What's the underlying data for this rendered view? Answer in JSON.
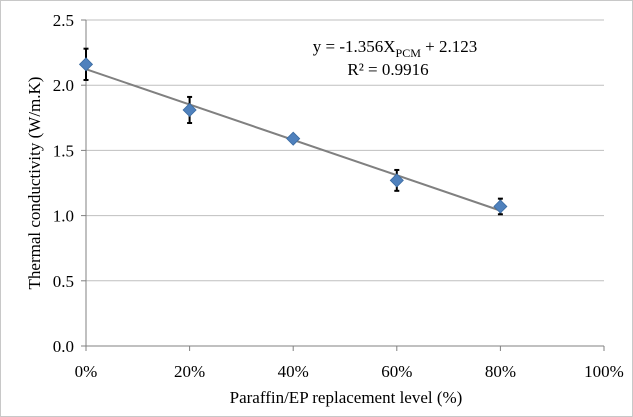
{
  "chart_data": {
    "type": "scatter",
    "title": "",
    "xlabel": "Paraffin/EP replacement level (%)",
    "ylabel": "Thermal conductivity (W/m.K)",
    "xlim": [
      0,
      100
    ],
    "ylim": [
      0,
      2.5
    ],
    "x_ticks": [
      "0%",
      "20%",
      "40%",
      "60%",
      "80%",
      "100%"
    ],
    "y_ticks": [
      "0.0",
      "0.5",
      "1.0",
      "1.5",
      "2.0",
      "2.5"
    ],
    "grid": true,
    "legend": "none",
    "marker_color": "#4F81BD",
    "trendline_color": "#808080",
    "series": [
      {
        "x": [
          0,
          20,
          40,
          60,
          80
        ],
        "y": [
          2.16,
          1.81,
          1.59,
          1.27,
          1.07
        ],
        "error": [
          0.12,
          0.1,
          0.02,
          0.08,
          0.06
        ]
      }
    ],
    "trendline": {
      "slope": -1.356,
      "intercept": 2.123,
      "x_range": [
        0,
        80
      ],
      "equation_main": "y = -1.356X",
      "equation_subscript": "PCM",
      "equation_tail": " + 2.123",
      "r_squared_label": "R² = 0.9916"
    }
  }
}
